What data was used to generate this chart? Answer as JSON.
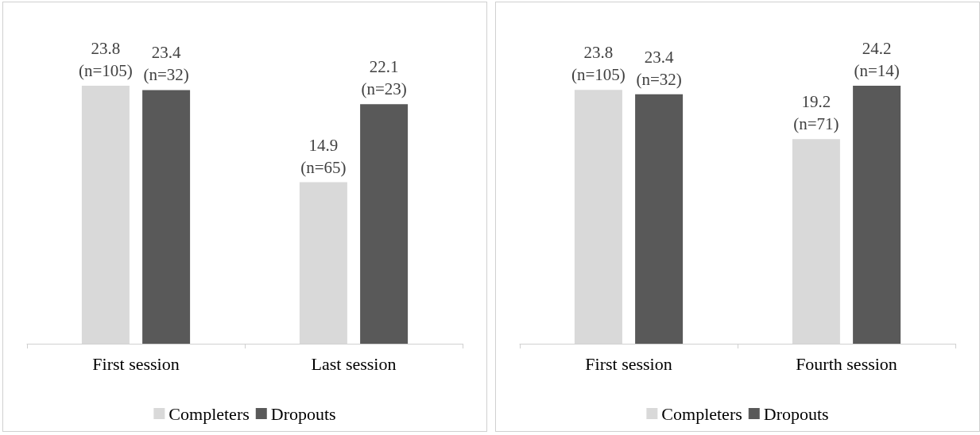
{
  "chart_data": [
    {
      "type": "bar",
      "categories": [
        "First session",
        "Last session"
      ],
      "series": [
        {
          "name": "Completers",
          "color": "#d9d9d9",
          "values": [
            23.8,
            14.9
          ],
          "value_labels": [
            "23.8\n(n=105)",
            "14.9\n(n=65)"
          ]
        },
        {
          "name": "Dropouts",
          "color": "#595959",
          "values": [
            23.4,
            22.1
          ],
          "value_labels": [
            "23.4\n(n=32)",
            "22.1\n(n=23)"
          ]
        }
      ],
      "legend": "bottom",
      "tick_labels": "x"
    },
    {
      "type": "bar",
      "categories": [
        "First session",
        "Fourth session"
      ],
      "series": [
        {
          "name": "Completers",
          "color": "#d9d9d9",
          "values": [
            23.8,
            19.2
          ],
          "value_labels": [
            "23.8\n(n=105)",
            "19.2\n(n=71)"
          ]
        },
        {
          "name": "Dropouts",
          "color": "#595959",
          "values": [
            23.4,
            24.2
          ],
          "value_labels": [
            "23.4\n(n=32)",
            "24.2\n(n=14)"
          ]
        }
      ],
      "legend": "bottom",
      "tick_labels": "x"
    }
  ]
}
